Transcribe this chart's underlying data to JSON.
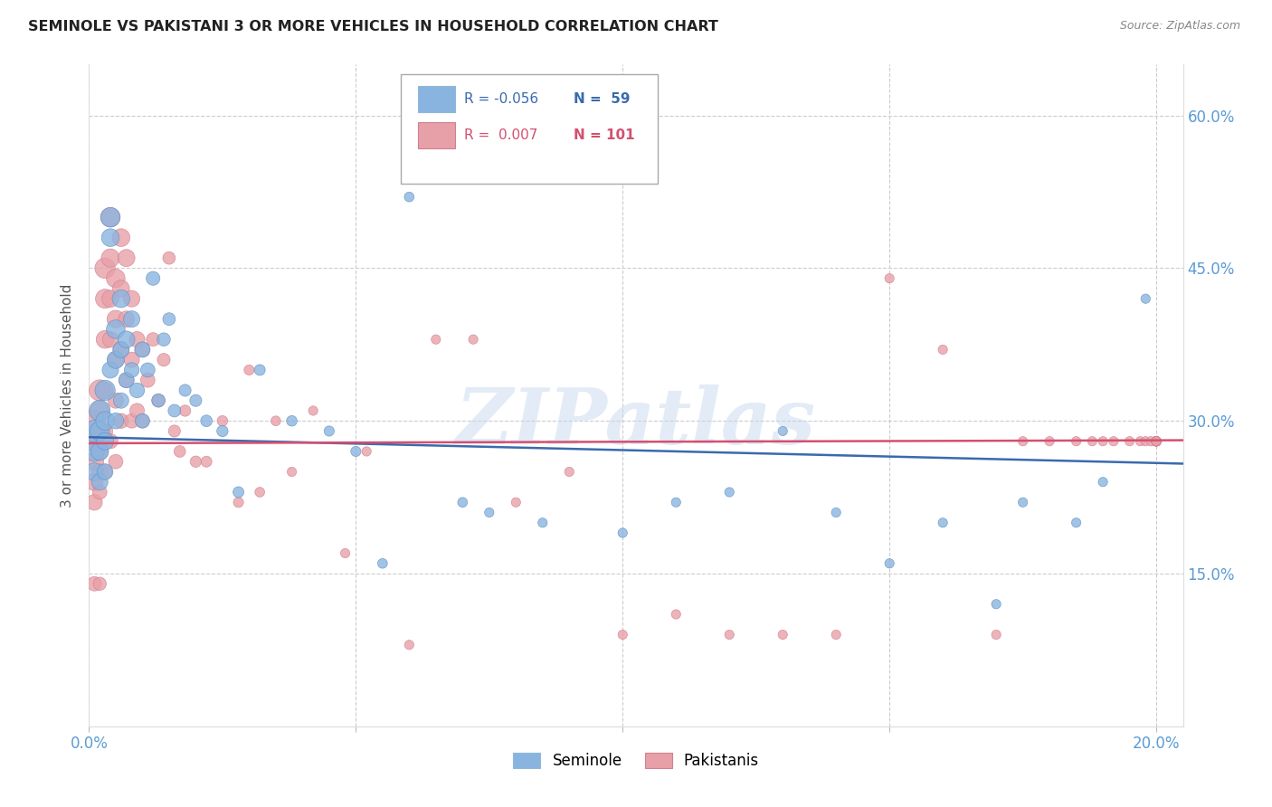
{
  "title": "SEMINOLE VS PAKISTANI 3 OR MORE VEHICLES IN HOUSEHOLD CORRELATION CHART",
  "source": "Source: ZipAtlas.com",
  "ylabel": "3 or more Vehicles in Household",
  "blue_color": "#8ab4e0",
  "pink_color": "#e8a0a8",
  "blue_line_color": "#3a6aad",
  "pink_line_color": "#d45070",
  "watermark": "ZIPatlas",
  "seminole_x": [
    0.001,
    0.001,
    0.001,
    0.002,
    0.002,
    0.002,
    0.002,
    0.003,
    0.003,
    0.003,
    0.003,
    0.004,
    0.004,
    0.004,
    0.005,
    0.005,
    0.005,
    0.006,
    0.006,
    0.006,
    0.007,
    0.007,
    0.008,
    0.008,
    0.009,
    0.01,
    0.01,
    0.011,
    0.012,
    0.013,
    0.014,
    0.015,
    0.016,
    0.018,
    0.02,
    0.022,
    0.025,
    0.028,
    0.032,
    0.038,
    0.045,
    0.05,
    0.055,
    0.06,
    0.07,
    0.075,
    0.085,
    0.1,
    0.11,
    0.12,
    0.13,
    0.14,
    0.15,
    0.16,
    0.17,
    0.175,
    0.185,
    0.19,
    0.198
  ],
  "seminole_y": [
    0.29,
    0.27,
    0.25,
    0.31,
    0.29,
    0.27,
    0.24,
    0.33,
    0.3,
    0.28,
    0.25,
    0.5,
    0.48,
    0.35,
    0.39,
    0.36,
    0.3,
    0.42,
    0.37,
    0.32,
    0.38,
    0.34,
    0.4,
    0.35,
    0.33,
    0.37,
    0.3,
    0.35,
    0.44,
    0.32,
    0.38,
    0.4,
    0.31,
    0.33,
    0.32,
    0.3,
    0.29,
    0.23,
    0.35,
    0.3,
    0.29,
    0.27,
    0.16,
    0.52,
    0.22,
    0.21,
    0.2,
    0.19,
    0.22,
    0.23,
    0.29,
    0.21,
    0.16,
    0.2,
    0.12,
    0.22,
    0.2,
    0.24,
    0.42
  ],
  "seminole_sizes": [
    300,
    250,
    200,
    280,
    240,
    200,
    170,
    260,
    220,
    190,
    160,
    240,
    200,
    170,
    220,
    190,
    160,
    200,
    170,
    150,
    180,
    150,
    170,
    140,
    140,
    150,
    130,
    130,
    120,
    110,
    110,
    100,
    100,
    90,
    90,
    85,
    80,
    75,
    75,
    70,
    65,
    65,
    60,
    60,
    60,
    55,
    55,
    55,
    55,
    55,
    55,
    55,
    55,
    55,
    55,
    55,
    55,
    55,
    55
  ],
  "pakistani_x": [
    0.001,
    0.001,
    0.001,
    0.001,
    0.001,
    0.001,
    0.002,
    0.002,
    0.002,
    0.002,
    0.002,
    0.002,
    0.002,
    0.003,
    0.003,
    0.003,
    0.003,
    0.003,
    0.003,
    0.004,
    0.004,
    0.004,
    0.004,
    0.004,
    0.005,
    0.005,
    0.005,
    0.005,
    0.005,
    0.006,
    0.006,
    0.006,
    0.006,
    0.007,
    0.007,
    0.007,
    0.008,
    0.008,
    0.008,
    0.009,
    0.009,
    0.01,
    0.01,
    0.011,
    0.012,
    0.013,
    0.014,
    0.015,
    0.016,
    0.017,
    0.018,
    0.02,
    0.022,
    0.025,
    0.028,
    0.03,
    0.032,
    0.035,
    0.038,
    0.042,
    0.048,
    0.052,
    0.06,
    0.065,
    0.072,
    0.08,
    0.09,
    0.1,
    0.11,
    0.12,
    0.13,
    0.14,
    0.15,
    0.16,
    0.17,
    0.175,
    0.18,
    0.185,
    0.188,
    0.19,
    0.192,
    0.195,
    0.197,
    0.198,
    0.199,
    0.2,
    0.2,
    0.2,
    0.2,
    0.2,
    0.2,
    0.2,
    0.2,
    0.2,
    0.2,
    0.2,
    0.2,
    0.2,
    0.2,
    0.2,
    0.2
  ],
  "pakistani_y": [
    0.3,
    0.28,
    0.26,
    0.24,
    0.22,
    0.14,
    0.33,
    0.31,
    0.29,
    0.27,
    0.25,
    0.23,
    0.14,
    0.45,
    0.42,
    0.38,
    0.33,
    0.29,
    0.25,
    0.5,
    0.46,
    0.42,
    0.38,
    0.28,
    0.44,
    0.4,
    0.36,
    0.32,
    0.26,
    0.48,
    0.43,
    0.37,
    0.3,
    0.46,
    0.4,
    0.34,
    0.42,
    0.36,
    0.3,
    0.38,
    0.31,
    0.37,
    0.3,
    0.34,
    0.38,
    0.32,
    0.36,
    0.46,
    0.29,
    0.27,
    0.31,
    0.26,
    0.26,
    0.3,
    0.22,
    0.35,
    0.23,
    0.3,
    0.25,
    0.31,
    0.17,
    0.27,
    0.08,
    0.38,
    0.38,
    0.22,
    0.25,
    0.09,
    0.11,
    0.09,
    0.09,
    0.09,
    0.44,
    0.37,
    0.09,
    0.28,
    0.28,
    0.28,
    0.28,
    0.28,
    0.28,
    0.28,
    0.28,
    0.28,
    0.28,
    0.28,
    0.28,
    0.28,
    0.28,
    0.28,
    0.28,
    0.28,
    0.28,
    0.28,
    0.28,
    0.28,
    0.28,
    0.28,
    0.28,
    0.28,
    0.28
  ],
  "pakistani_sizes": [
    300,
    260,
    220,
    190,
    160,
    130,
    280,
    240,
    210,
    180,
    155,
    130,
    110,
    260,
    230,
    200,
    170,
    150,
    130,
    240,
    210,
    185,
    160,
    140,
    220,
    195,
    170,
    150,
    130,
    200,
    180,
    160,
    140,
    185,
    165,
    145,
    170,
    150,
    130,
    155,
    135,
    145,
    125,
    130,
    115,
    110,
    105,
    100,
    90,
    85,
    80,
    80,
    75,
    70,
    65,
    65,
    60,
    60,
    55,
    55,
    55,
    55,
    55,
    55,
    55,
    55,
    55,
    55,
    55,
    55,
    55,
    55,
    55,
    55,
    55,
    55,
    55,
    55,
    55,
    55,
    55,
    55,
    55,
    55,
    55,
    55,
    55,
    55,
    55,
    55,
    55,
    55,
    55,
    55,
    55,
    55,
    55,
    55,
    55,
    55,
    55
  ],
  "xlim": [
    0.0,
    0.205
  ],
  "ylim": [
    0.0,
    0.65
  ],
  "x_ticks": [
    0.0,
    0.05,
    0.1,
    0.15,
    0.2
  ],
  "x_tick_labels": [
    "0.0%",
    "",
    "",
    "",
    "20.0%"
  ],
  "y_ticks": [
    0.0,
    0.15,
    0.3,
    0.45,
    0.6
  ],
  "y_tick_labels_right": [
    "",
    "15.0%",
    "30.0%",
    "45.0%",
    "60.0%"
  ],
  "sem_line_x": [
    0.0,
    0.205
  ],
  "sem_line_y": [
    0.284,
    0.258
  ],
  "pak_line_x": [
    0.0,
    0.205
  ],
  "pak_line_y": [
    0.278,
    0.281
  ]
}
